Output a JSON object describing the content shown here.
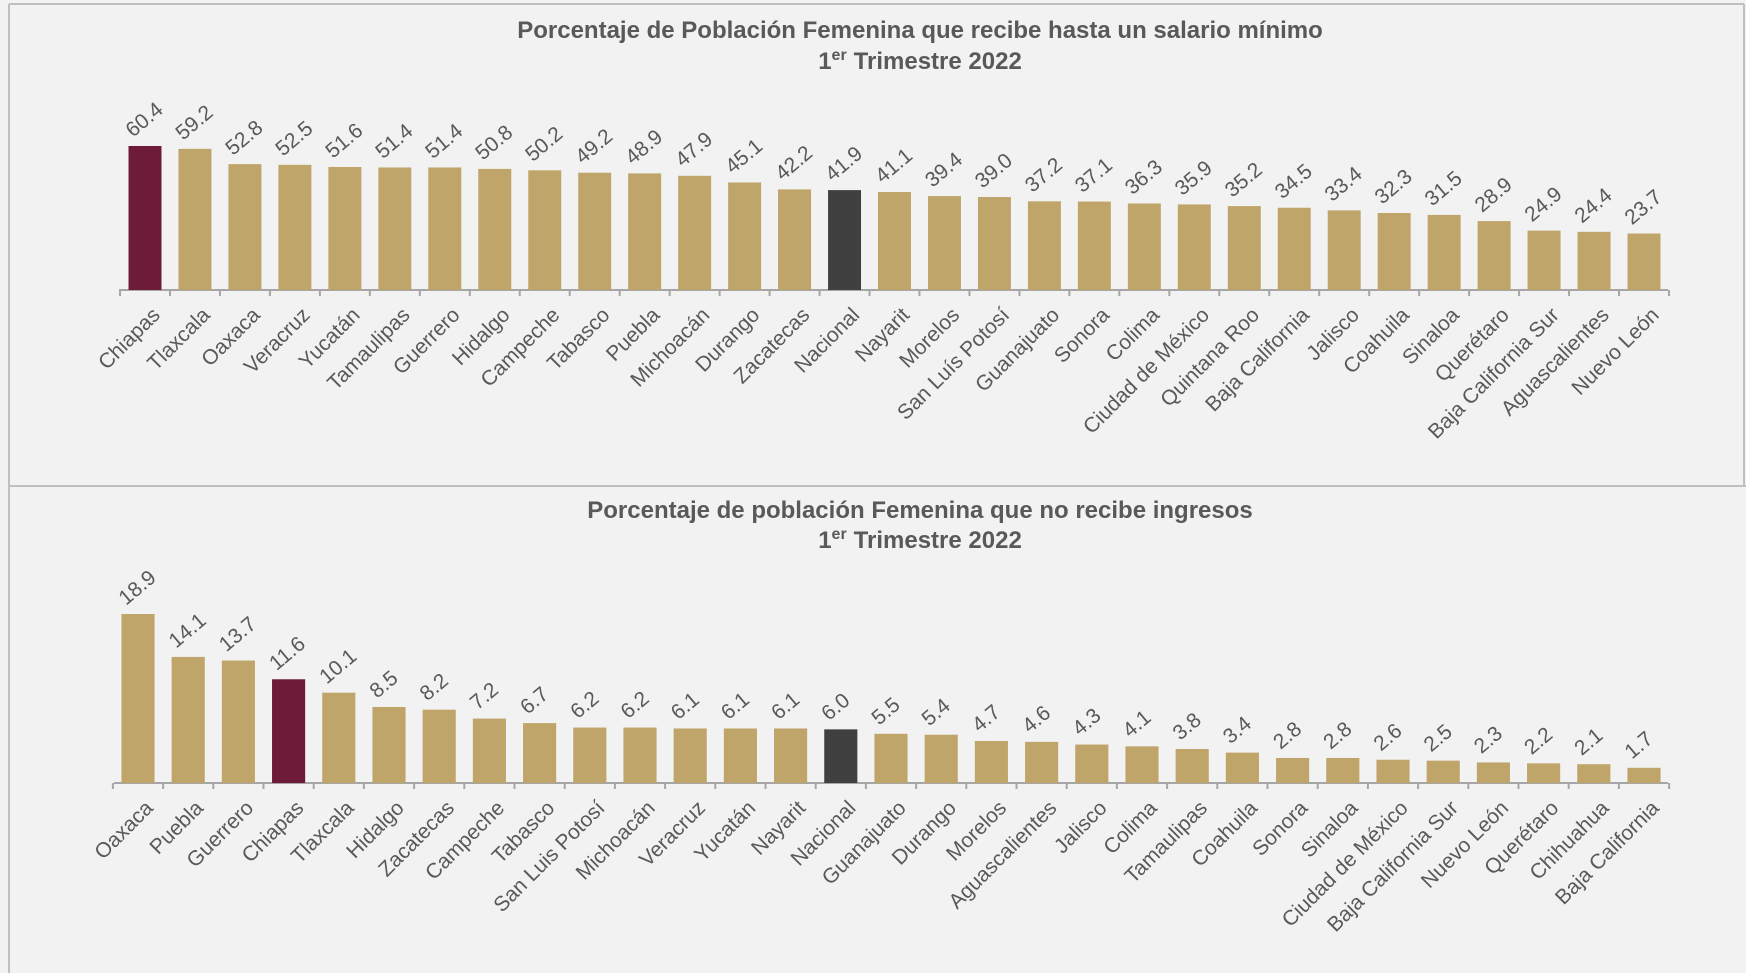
{
  "chart_data": [
    {
      "type": "bar",
      "title": "Porcentaje de Población Femenina que recibe hasta un salario mínimo",
      "subtitle": [
        "1",
        "er",
        "Trimestre 2022"
      ],
      "categories": [
        "Chiapas",
        "Tlaxcala",
        "Oaxaca",
        "Veracruz",
        "Yucatán",
        "Tamaulipas",
        "Guerrero",
        "Hidalgo",
        "Campeche",
        "Tabasco",
        "Puebla",
        "Michoacán",
        "Durango",
        "Zacatecas",
        "Nacional",
        "Nayarit",
        "Morelos",
        "San Luís Potosí",
        "Guanajuato",
        "Sonora",
        "Colima",
        "Ciudad de México",
        "Quintana Roo",
        "Baja California",
        "Jalisco",
        "Coahuila",
        "Sinaloa",
        "Querétaro",
        "Baja California Sur",
        "Aguascalientes",
        "Nuevo León"
      ],
      "values": [
        60.4,
        59.2,
        52.8,
        52.5,
        51.6,
        51.4,
        51.4,
        50.8,
        50.2,
        49.2,
        48.9,
        47.9,
        45.1,
        42.2,
        41.9,
        41.1,
        39.4,
        39.0,
        37.2,
        37.1,
        36.3,
        35.9,
        35.2,
        34.5,
        33.4,
        32.3,
        31.5,
        28.9,
        24.9,
        24.4,
        23.7
      ],
      "value_labels": [
        "60.4",
        "59.2",
        "52.8",
        "52.5",
        "51.6",
        "51.4",
        "51.4",
        "50.8",
        "50.2",
        "49.2",
        "48.9",
        "47.9",
        "45.1",
        "42.2",
        "41.9",
        "41.1",
        "39.4",
        "39.0",
        "37.2",
        "37.1",
        "36.3",
        "35.9",
        "35.2",
        "34.5",
        "33.4",
        "32.3",
        "31.5",
        "28.9",
        "24.9",
        "24.4",
        "23.7"
      ],
      "colors": [
        "#6e1a3b",
        "#bfa56a",
        "#bfa56a",
        "#bfa56a",
        "#bfa56a",
        "#bfa56a",
        "#bfa56a",
        "#bfa56a",
        "#bfa56a",
        "#bfa56a",
        "#bfa56a",
        "#bfa56a",
        "#bfa56a",
        "#bfa56a",
        "#404040",
        "#bfa56a",
        "#bfa56a",
        "#bfa56a",
        "#bfa56a",
        "#bfa56a",
        "#bfa56a",
        "#bfa56a",
        "#bfa56a",
        "#bfa56a",
        "#bfa56a",
        "#bfa56a",
        "#bfa56a",
        "#bfa56a",
        "#bfa56a",
        "#bfa56a",
        "#bfa56a"
      ]
    },
    {
      "type": "bar",
      "title": "Porcentaje de población Femenina que no recibe ingresos",
      "subtitle": [
        "1",
        "er",
        "Trimestre 2022"
      ],
      "categories": [
        "Oaxaca",
        "Puebla",
        "Guerrero",
        "Chiapas",
        "Tlaxcala",
        "Hidalgo",
        "Zacatecas",
        "Campeche",
        "Tabasco",
        "San Luis Potosí",
        "Michoacán",
        "Veracruz",
        "Yucatán",
        "Nayarit",
        "Nacional",
        "Guanajuato",
        "Durango",
        "Morelos",
        "Aguascalientes",
        "Jalisco",
        "Colima",
        "Tamaulipas",
        "Coahuila",
        "Sonora",
        "Sinaloa",
        "Ciudad de México",
        "Baja California Sur",
        "Nuevo León",
        "Querétaro",
        "Chihuahua",
        "Baja California"
      ],
      "values": [
        18.9,
        14.1,
        13.7,
        11.6,
        10.1,
        8.5,
        8.2,
        7.2,
        6.7,
        6.2,
        6.2,
        6.1,
        6.1,
        6.1,
        6.0,
        5.5,
        5.4,
        4.7,
        4.6,
        4.3,
        4.1,
        3.8,
        3.4,
        2.8,
        2.8,
        2.6,
        2.5,
        2.3,
        2.2,
        2.1,
        1.7
      ],
      "value_labels": [
        "18.9",
        "14.1",
        "13.7",
        "11.6",
        "10.1",
        "8.5",
        "8.2",
        "7.2",
        "6.7",
        "6.2",
        "6.2",
        "6.1",
        "6.1",
        "6.1",
        "6.0",
        "5.5",
        "5.4",
        "4.7",
        "4.6",
        "4.3",
        "4.1",
        "3.8",
        "3.4",
        "2.8",
        "2.8",
        "2.6",
        "2.5",
        "2.3",
        "2.2",
        "2.1",
        "1.7"
      ],
      "colors": [
        "#bfa56a",
        "#bfa56a",
        "#bfa56a",
        "#6e1a3b",
        "#bfa56a",
        "#bfa56a",
        "#bfa56a",
        "#bfa56a",
        "#bfa56a",
        "#bfa56a",
        "#bfa56a",
        "#bfa56a",
        "#bfa56a",
        "#bfa56a",
        "#404040",
        "#bfa56a",
        "#bfa56a",
        "#bfa56a",
        "#bfa56a",
        "#bfa56a",
        "#bfa56a",
        "#bfa56a",
        "#bfa56a",
        "#bfa56a",
        "#bfa56a",
        "#bfa56a",
        "#bfa56a",
        "#bfa56a",
        "#bfa56a",
        "#bfa56a",
        "#bfa56a"
      ]
    }
  ]
}
